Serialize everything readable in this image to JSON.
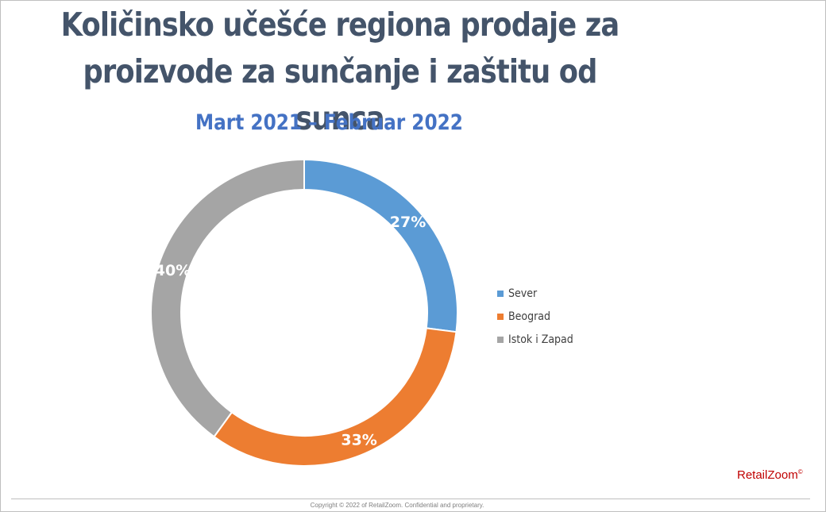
{
  "title_line1": "Količinsko učešće regiona prodaje za",
  "title_line2": "proizvode za sunčanje i zaštitu od sunca",
  "subtitle": "Mart 2021 – Februar 2022",
  "chart_data": {
    "type": "pie",
    "subtype": "donut",
    "categories": [
      "Sever",
      "Beograd",
      "Istok i Zapad"
    ],
    "values": [
      27,
      33,
      40
    ],
    "labels": [
      "27%",
      "33%",
      "40%"
    ],
    "colors": [
      "#5b9bd5",
      "#ed7d31",
      "#a5a5a5"
    ],
    "legend_position": "right"
  },
  "logo": {
    "text": "RetailZoom",
    "mark": "©"
  },
  "footer": {
    "copyright": "Copyright © 2022 of RetailZoom. Confidential and proprietary."
  }
}
